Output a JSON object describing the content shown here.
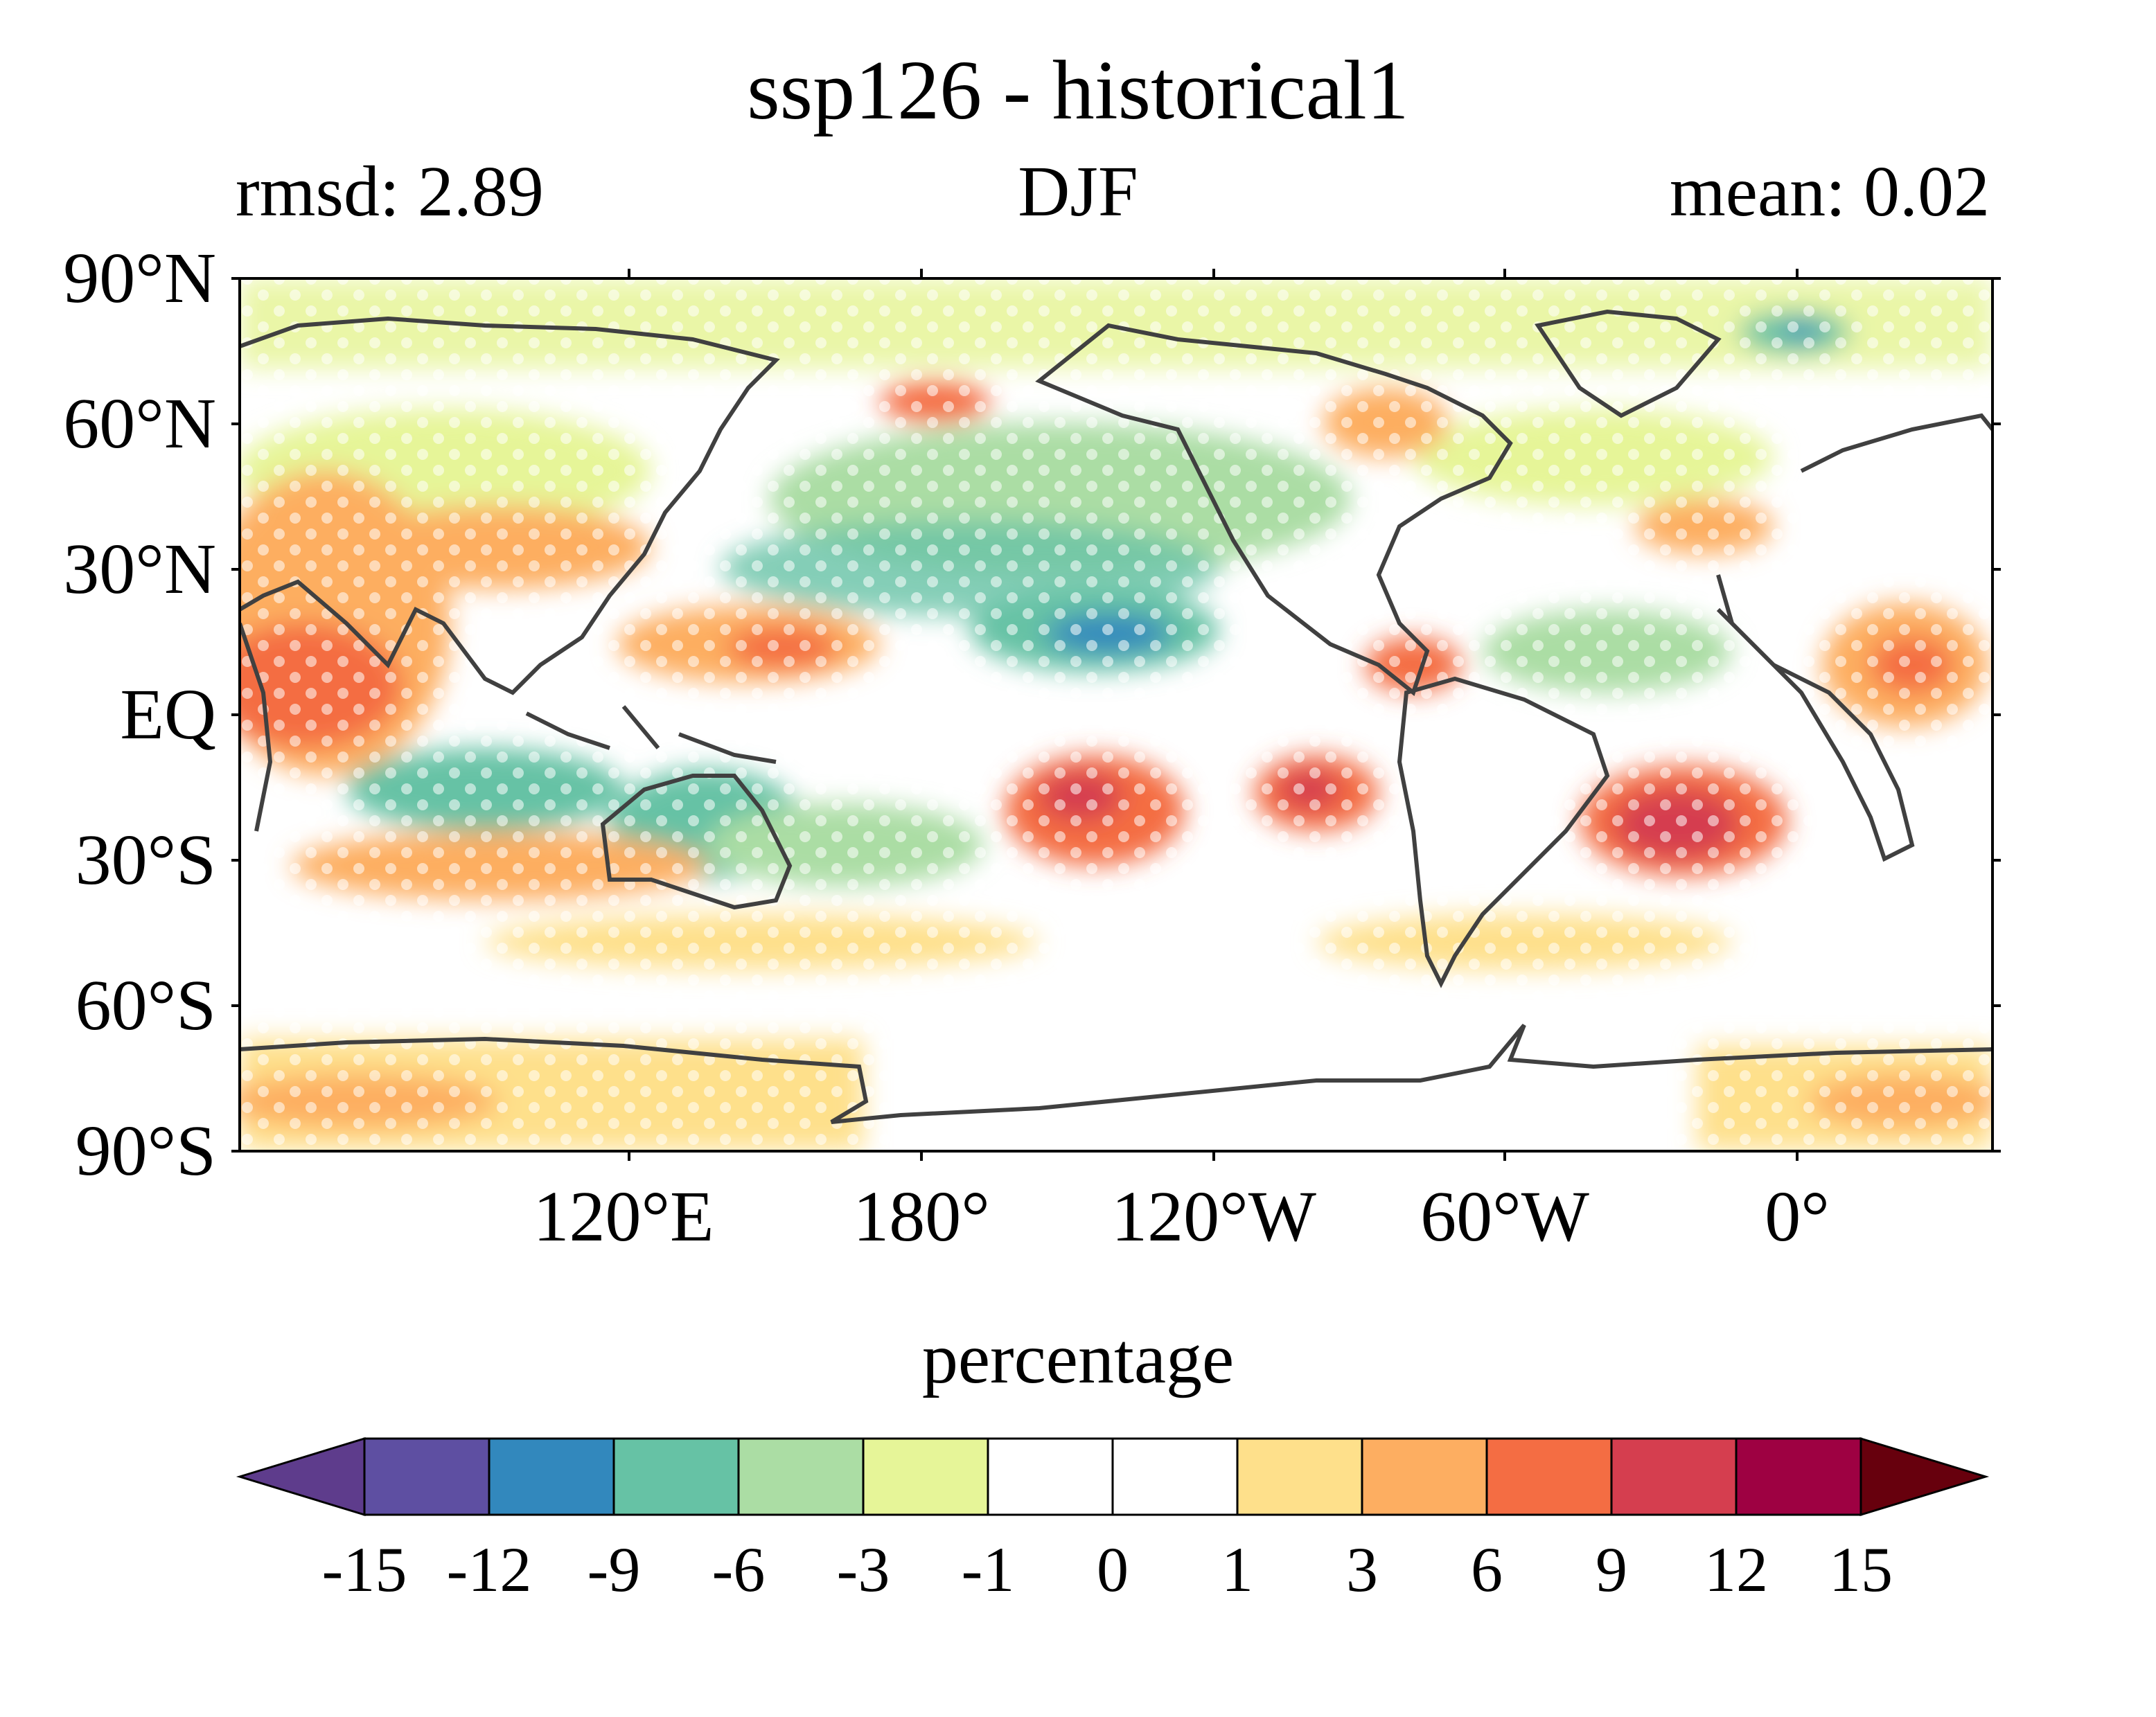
{
  "figure": {
    "title": "ssp126 - historical1",
    "left_subtitle": "rmsd: 2.89",
    "center_subtitle": "DJF",
    "right_subtitle": "mean: 0.02"
  },
  "map": {
    "projection": "equirectangular, centered on 150°W",
    "lat_labels": [
      "90°N",
      "60°N",
      "30°N",
      "EQ",
      "30°S",
      "60°S",
      "90°S"
    ],
    "lon_labels": [
      "120°E",
      "180°",
      "120°W",
      "60°W",
      "0°"
    ],
    "coastline_color": "#404040",
    "stippling": "white dots mark significance"
  },
  "colorbar": {
    "title": "percentage",
    "tick_labels": [
      "-15",
      "-12",
      "-9",
      "-6",
      "-3",
      "-1",
      "0",
      "1",
      "3",
      "6",
      "9",
      "12",
      "15"
    ],
    "colors": [
      "#5e3c8c",
      "#5e4fa2",
      "#3288bd",
      "#66c2a5",
      "#abdda4",
      "#e6f598",
      "#ffffff",
      "#ffffff",
      "#fee08b",
      "#fdae61",
      "#f46d43",
      "#d53e4f",
      "#9e0142",
      "#67000d"
    ],
    "extend": "both"
  },
  "chart_data": {
    "type": "heatmap",
    "title": "ssp126 - historical1",
    "subtitles": [
      "rmsd: 2.89",
      "DJF",
      "mean: 0.02"
    ],
    "colorbar_label": "percentage",
    "levels": [
      -15,
      -12,
      -9,
      -6,
      -3,
      -1,
      0,
      1,
      3,
      6,
      9,
      12,
      15
    ],
    "season": "DJF",
    "rmsd": 2.89,
    "mean": 0.02,
    "lat_range": [
      -90,
      90
    ],
    "lon_center": -150,
    "regions": [
      {
        "area": "tropical Indian Ocean / Arabian Sea",
        "value": 7
      },
      {
        "area": "western tropical Pacific north of equator",
        "value": 7
      },
      {
        "area": "central North Pacific (~20°N, 140°W)",
        "value": -10
      },
      {
        "area": "South Pacific (~20°S, 140°W)",
        "value": 10
      },
      {
        "area": "South Pacific (~20°S, 100°W)",
        "value": 11
      },
      {
        "area": "South Atlantic (~25°S, 30°W)",
        "value": 11
      },
      {
        "area": "Maritime Continent south / northern Australia",
        "value": -5
      },
      {
        "area": "North Atlantic subpolar",
        "value": 4
      },
      {
        "area": "Greenland Sea (~80°N, 0°)",
        "value": -11
      },
      {
        "area": "Southern Ocean",
        "value": 2
      }
    ]
  }
}
